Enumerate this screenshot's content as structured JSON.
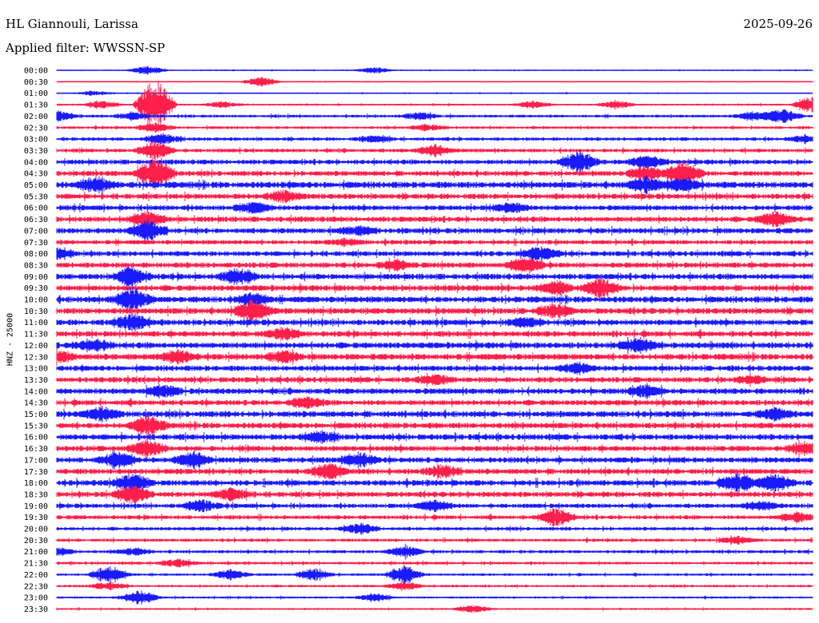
{
  "chart_data": {
    "type": "line",
    "title": "HL Giannouli, Larissa",
    "subtitle": "Applied filter: WWSSN-SP",
    "date": "2025-09-26",
    "ylabel": "HNZ - 25000",
    "xlabel": "",
    "colors": [
      "#1a1aff",
      "#ff1f4a"
    ],
    "grid": false,
    "rows": [
      {
        "time": "00:00",
        "level": 0.2,
        "bursts": [
          [
            0.12,
            0.7
          ],
          [
            0.42,
            0.5
          ]
        ]
      },
      {
        "time": "00:30",
        "level": 0.15,
        "bursts": [
          [
            0.27,
            0.8
          ]
        ]
      },
      {
        "time": "01:00",
        "level": 0.2,
        "bursts": [
          [
            0.05,
            0.4
          ]
        ]
      },
      {
        "time": "01:30",
        "level": 0.3,
        "bursts": [
          [
            0.13,
            4.5
          ],
          [
            0.06,
            0.6
          ],
          [
            0.22,
            0.5
          ],
          [
            0.63,
            0.6
          ],
          [
            0.74,
            0.6
          ],
          [
            1.0,
            1.5
          ]
        ]
      },
      {
        "time": "02:00",
        "level": 0.45,
        "bursts": [
          [
            0.0,
            0.9
          ],
          [
            0.1,
            0.6
          ],
          [
            0.48,
            0.6
          ],
          [
            0.96,
            1.3
          ],
          [
            0.92,
            0.7
          ]
        ]
      },
      {
        "time": "02:30",
        "level": 0.45,
        "bursts": [
          [
            0.13,
            0.7
          ],
          [
            0.49,
            0.5
          ]
        ]
      },
      {
        "time": "03:00",
        "level": 0.55,
        "bursts": [
          [
            0.14,
            0.8
          ],
          [
            0.42,
            0.5
          ],
          [
            0.99,
            0.6
          ]
        ]
      },
      {
        "time": "03:30",
        "level": 0.6,
        "bursts": [
          [
            0.5,
            0.9
          ],
          [
            0.13,
            1.5
          ]
        ]
      },
      {
        "time": "04:00",
        "level": 0.75,
        "bursts": [
          [
            0.69,
            1.8
          ],
          [
            0.78,
            1.0
          ]
        ]
      },
      {
        "time": "04:30",
        "level": 0.8,
        "bursts": [
          [
            0.13,
            2.5
          ],
          [
            0.83,
            2.0
          ],
          [
            0.78,
            1.2
          ]
        ]
      },
      {
        "time": "05:00",
        "level": 1.0,
        "bursts": [
          [
            0.05,
            1.2
          ],
          [
            0.78,
            1.2
          ],
          [
            0.83,
            1.0
          ]
        ]
      },
      {
        "time": "05:30",
        "level": 0.85,
        "bursts": [
          [
            0.3,
            0.8
          ]
        ]
      },
      {
        "time": "06:00",
        "level": 0.8,
        "bursts": [
          [
            0.26,
            0.9
          ],
          [
            0.6,
            0.7
          ]
        ]
      },
      {
        "time": "06:30",
        "level": 0.85,
        "bursts": [
          [
            0.12,
            1.2
          ],
          [
            0.95,
            1.1
          ]
        ]
      },
      {
        "time": "07:00",
        "level": 0.85,
        "bursts": [
          [
            0.12,
            1.5
          ],
          [
            0.4,
            0.7
          ]
        ]
      },
      {
        "time": "07:30",
        "level": 0.7,
        "bursts": [
          [
            0.38,
            0.5
          ]
        ]
      },
      {
        "time": "08:00",
        "level": 0.8,
        "bursts": [
          [
            0.64,
            1.1
          ],
          [
            0.0,
            0.8
          ]
        ]
      },
      {
        "time": "08:30",
        "level": 0.85,
        "bursts": [
          [
            0.62,
            1.3
          ],
          [
            0.45,
            0.8
          ]
        ]
      },
      {
        "time": "09:00",
        "level": 0.9,
        "bursts": [
          [
            0.24,
            1.3
          ],
          [
            0.1,
            1.5
          ]
        ]
      },
      {
        "time": "09:30",
        "level": 0.9,
        "bursts": [
          [
            0.72,
            1.6
          ],
          [
            0.66,
            1.0
          ]
        ]
      },
      {
        "time": "10:00",
        "level": 0.95,
        "bursts": [
          [
            0.1,
            2.0
          ],
          [
            0.26,
            0.9
          ]
        ]
      },
      {
        "time": "10:30",
        "level": 0.95,
        "bursts": [
          [
            0.26,
            1.8
          ],
          [
            0.66,
            1.1
          ]
        ]
      },
      {
        "time": "11:00",
        "level": 0.9,
        "bursts": [
          [
            0.1,
            1.3
          ],
          [
            0.62,
            0.8
          ]
        ]
      },
      {
        "time": "11:30",
        "level": 0.9,
        "bursts": [
          [
            0.3,
            0.9
          ]
        ]
      },
      {
        "time": "12:00",
        "level": 0.95,
        "bursts": [
          [
            0.05,
            0.9
          ],
          [
            0.77,
            1.0
          ]
        ]
      },
      {
        "time": "12:30",
        "level": 0.95,
        "bursts": [
          [
            0.0,
            1.1
          ],
          [
            0.16,
            1.0
          ],
          [
            0.3,
            0.9
          ]
        ]
      },
      {
        "time": "13:00",
        "level": 0.85,
        "bursts": [
          [
            0.69,
            0.8
          ]
        ]
      },
      {
        "time": "13:30",
        "level": 0.85,
        "bursts": [
          [
            0.5,
            0.7
          ],
          [
            0.92,
            0.6
          ]
        ]
      },
      {
        "time": "14:00",
        "level": 0.9,
        "bursts": [
          [
            0.14,
            0.9
          ],
          [
            0.78,
            0.9
          ]
        ]
      },
      {
        "time": "14:30",
        "level": 0.85,
        "bursts": [
          [
            0.33,
            0.9
          ]
        ]
      },
      {
        "time": "15:00",
        "level": 0.95,
        "bursts": [
          [
            0.06,
            1.0
          ],
          [
            0.95,
            0.9
          ]
        ]
      },
      {
        "time": "15:30",
        "level": 0.9,
        "bursts": [
          [
            0.12,
            1.6
          ]
        ]
      },
      {
        "time": "16:00",
        "level": 0.9,
        "bursts": [
          [
            0.35,
            0.8
          ]
        ]
      },
      {
        "time": "16:30",
        "level": 0.85,
        "bursts": [
          [
            0.12,
            1.4
          ],
          [
            0.99,
            0.9
          ]
        ]
      },
      {
        "time": "17:00",
        "level": 0.85,
        "bursts": [
          [
            0.08,
            1.3
          ],
          [
            0.18,
            1.3
          ],
          [
            0.4,
            1.1
          ]
        ]
      },
      {
        "time": "17:30",
        "level": 0.85,
        "bursts": [
          [
            0.36,
            1.3
          ],
          [
            0.51,
            1.0
          ]
        ]
      },
      {
        "time": "18:00",
        "level": 0.9,
        "bursts": [
          [
            0.1,
            1.6
          ],
          [
            0.9,
            1.4
          ],
          [
            0.95,
            1.4
          ]
        ]
      },
      {
        "time": "18:30",
        "level": 0.85,
        "bursts": [
          [
            0.1,
            1.4
          ],
          [
            0.23,
            0.9
          ]
        ]
      },
      {
        "time": "19:00",
        "level": 0.7,
        "bursts": [
          [
            0.19,
            0.9
          ],
          [
            0.5,
            0.9
          ],
          [
            0.93,
            0.7
          ]
        ]
      },
      {
        "time": "19:30",
        "level": 0.65,
        "bursts": [
          [
            0.66,
            1.4
          ],
          [
            0.98,
            0.7
          ]
        ]
      },
      {
        "time": "20:00",
        "level": 0.55,
        "bursts": [
          [
            0.4,
            0.9
          ]
        ]
      },
      {
        "time": "20:30",
        "level": 0.5,
        "bursts": [
          [
            0.9,
            0.6
          ]
        ]
      },
      {
        "time": "21:00",
        "level": 0.5,
        "bursts": [
          [
            0.0,
            0.6
          ],
          [
            0.1,
            0.5
          ],
          [
            0.46,
            0.9
          ]
        ]
      },
      {
        "time": "21:30",
        "level": 0.45,
        "bursts": [
          [
            0.16,
            0.6
          ]
        ]
      },
      {
        "time": "22:00",
        "level": 0.4,
        "bursts": [
          [
            0.07,
            1.5
          ],
          [
            0.23,
            0.8
          ],
          [
            0.34,
            0.9
          ],
          [
            0.46,
            1.5
          ]
        ]
      },
      {
        "time": "22:30",
        "level": 0.4,
        "bursts": [
          [
            0.07,
            0.6
          ],
          [
            0.46,
            0.6
          ]
        ]
      },
      {
        "time": "23:00",
        "level": 0.35,
        "bursts": [
          [
            0.11,
            1.1
          ],
          [
            0.42,
            0.6
          ]
        ]
      },
      {
        "time": "23:30",
        "level": 0.3,
        "bursts": [
          [
            0.55,
            0.6
          ]
        ]
      }
    ]
  }
}
